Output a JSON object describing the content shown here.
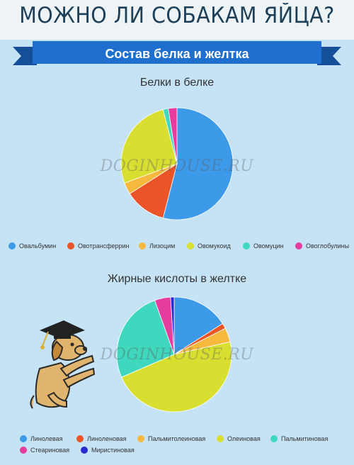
{
  "header": {
    "title": "МОЖНО ЛИ СОБАКАМ ЯЙЦА?",
    "subtitle": "Состав белка и желтка"
  },
  "watermark": "DOGINHOUSE.RU",
  "colors": {
    "header_bg": "#eef3f6",
    "page_bg": "#c5e3f5",
    "ribbon": "#1f6fcf",
    "ribbon_dark": "#154f9a",
    "title_text": "#1d3f57"
  },
  "chart_data": [
    {
      "type": "pie",
      "title": "Белки в белке",
      "legend_position": "bottom",
      "slices": [
        {
          "label": "Овальбумин",
          "value": 54,
          "color": "#3d9ae8"
        },
        {
          "label": "Овотрансферрин",
          "value": 12,
          "color": "#ea5426"
        },
        {
          "label": "Лизоцим",
          "value": 3.4,
          "color": "#f5b93d"
        },
        {
          "label": "Овомукоид",
          "value": 26.6,
          "color": "#d8df30"
        },
        {
          "label": "Овомуцин",
          "value": 1.5,
          "color": "#3fd7bd"
        },
        {
          "label": "Овоглобулины",
          "value": 2.5,
          "color": "#e53ca0"
        }
      ]
    },
    {
      "type": "pie",
      "title": "Жирные кислоты в желтке",
      "legend_position": "bottom",
      "slices": [
        {
          "label": "Линолевая",
          "value": 16,
          "color": "#3d9ae8"
        },
        {
          "label": "Линоленовая",
          "value": 1.5,
          "color": "#ea5426"
        },
        {
          "label": "Пальмитолеиновая",
          "value": 4,
          "color": "#f5b93d"
        },
        {
          "label": "Олеиновая",
          "value": 47,
          "color": "#d8df30"
        },
        {
          "label": "Пальмитиновая",
          "value": 26,
          "color": "#3fd7bd"
        },
        {
          "label": "Стеариновая",
          "value": 4.5,
          "color": "#e53ca0"
        },
        {
          "label": "Миристиновая",
          "value": 1,
          "color": "#2a2ad0"
        }
      ]
    }
  ]
}
